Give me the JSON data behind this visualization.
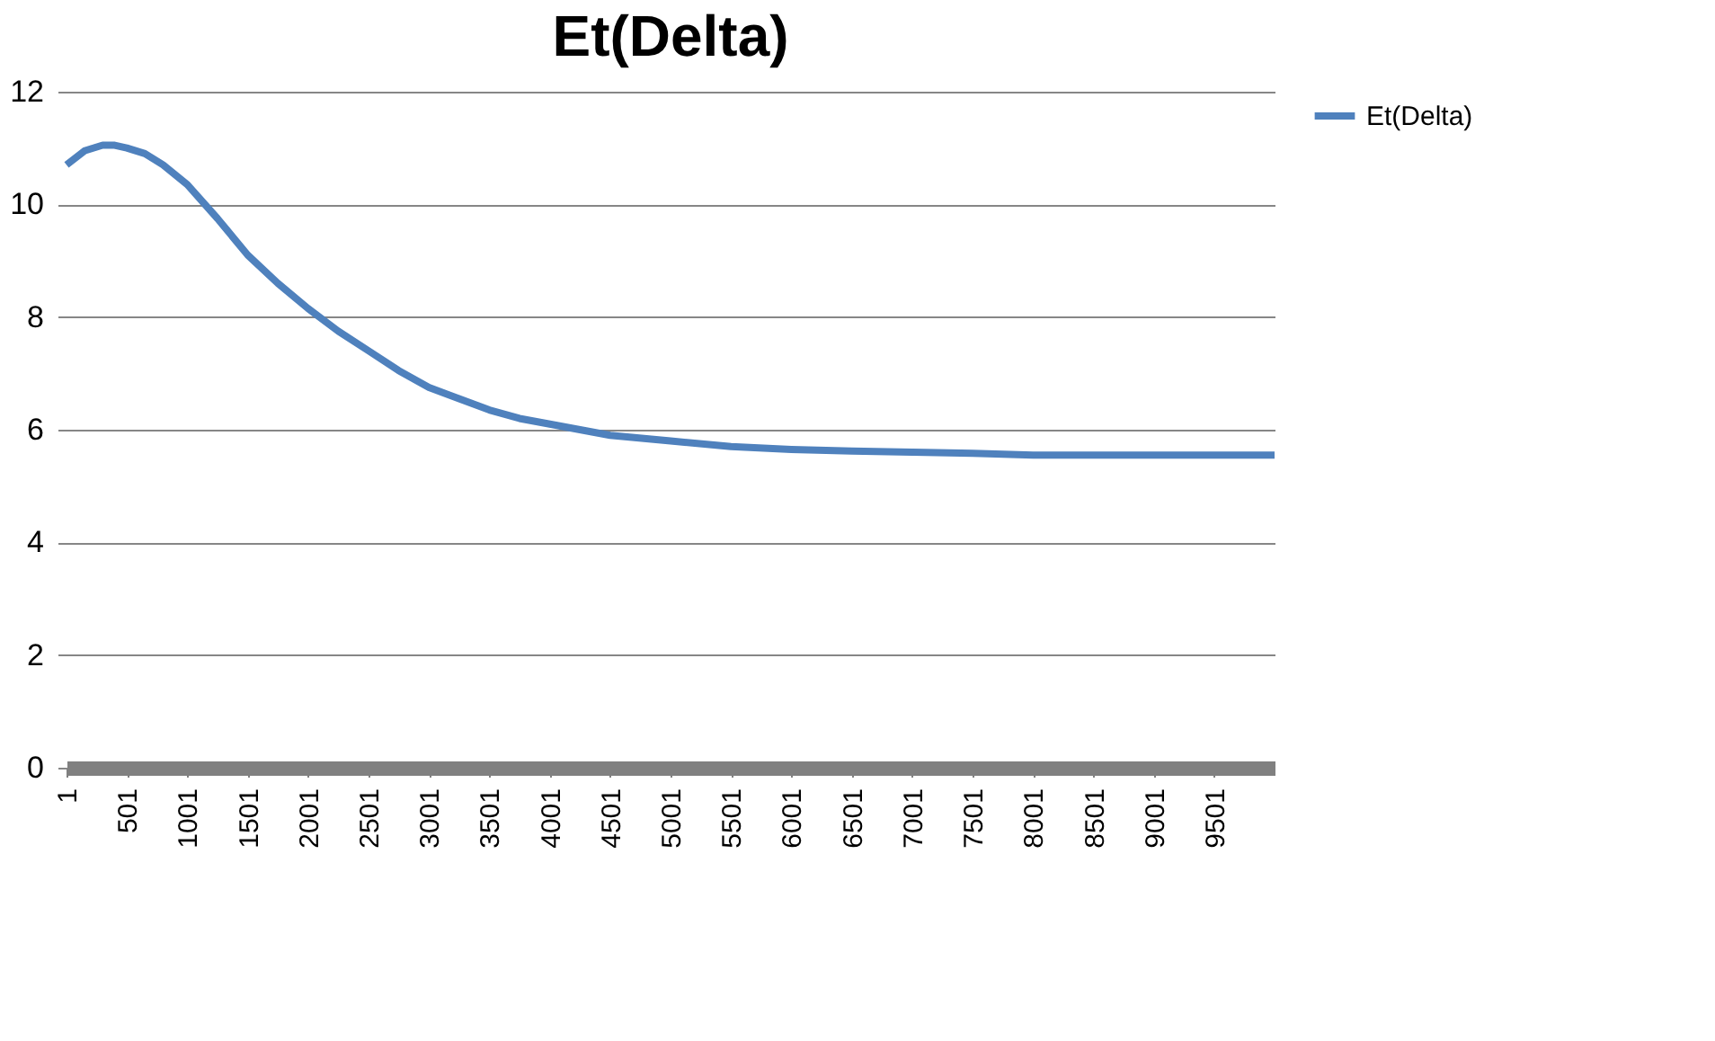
{
  "chart_data": {
    "type": "line",
    "title": "Et(Delta)",
    "x": [
      1,
      150,
      300,
      400,
      500,
      650,
      800,
      1001,
      1250,
      1501,
      1750,
      2001,
      2250,
      2501,
      2750,
      3001,
      3250,
      3501,
      3750,
      4001,
      4501,
      5001,
      5501,
      6001,
      6501,
      7001,
      7501,
      8001,
      9001,
      10000
    ],
    "series": [
      {
        "name": "Et(Delta)",
        "color": "#4f81bd",
        "values": [
          10.7,
          10.95,
          11.05,
          11.05,
          11.0,
          10.9,
          10.7,
          10.35,
          9.75,
          9.1,
          8.6,
          8.15,
          7.75,
          7.4,
          7.05,
          6.75,
          6.55,
          6.35,
          6.2,
          6.1,
          5.9,
          5.8,
          5.7,
          5.65,
          5.62,
          5.6,
          5.58,
          5.55,
          5.55,
          5.55
        ]
      }
    ],
    "xlim": [
      1,
      10000
    ],
    "xticks": [
      1,
      501,
      1001,
      1501,
      2001,
      2501,
      3001,
      3501,
      4001,
      4501,
      5001,
      5501,
      6001,
      6501,
      7001,
      7501,
      8001,
      8501,
      9001,
      9501
    ],
    "ylim": [
      0,
      12
    ],
    "yticks": [
      0,
      2,
      4,
      6,
      8,
      10,
      12
    ],
    "grid": "y",
    "legend": "right",
    "marker": "none",
    "line_style": "solid"
  }
}
